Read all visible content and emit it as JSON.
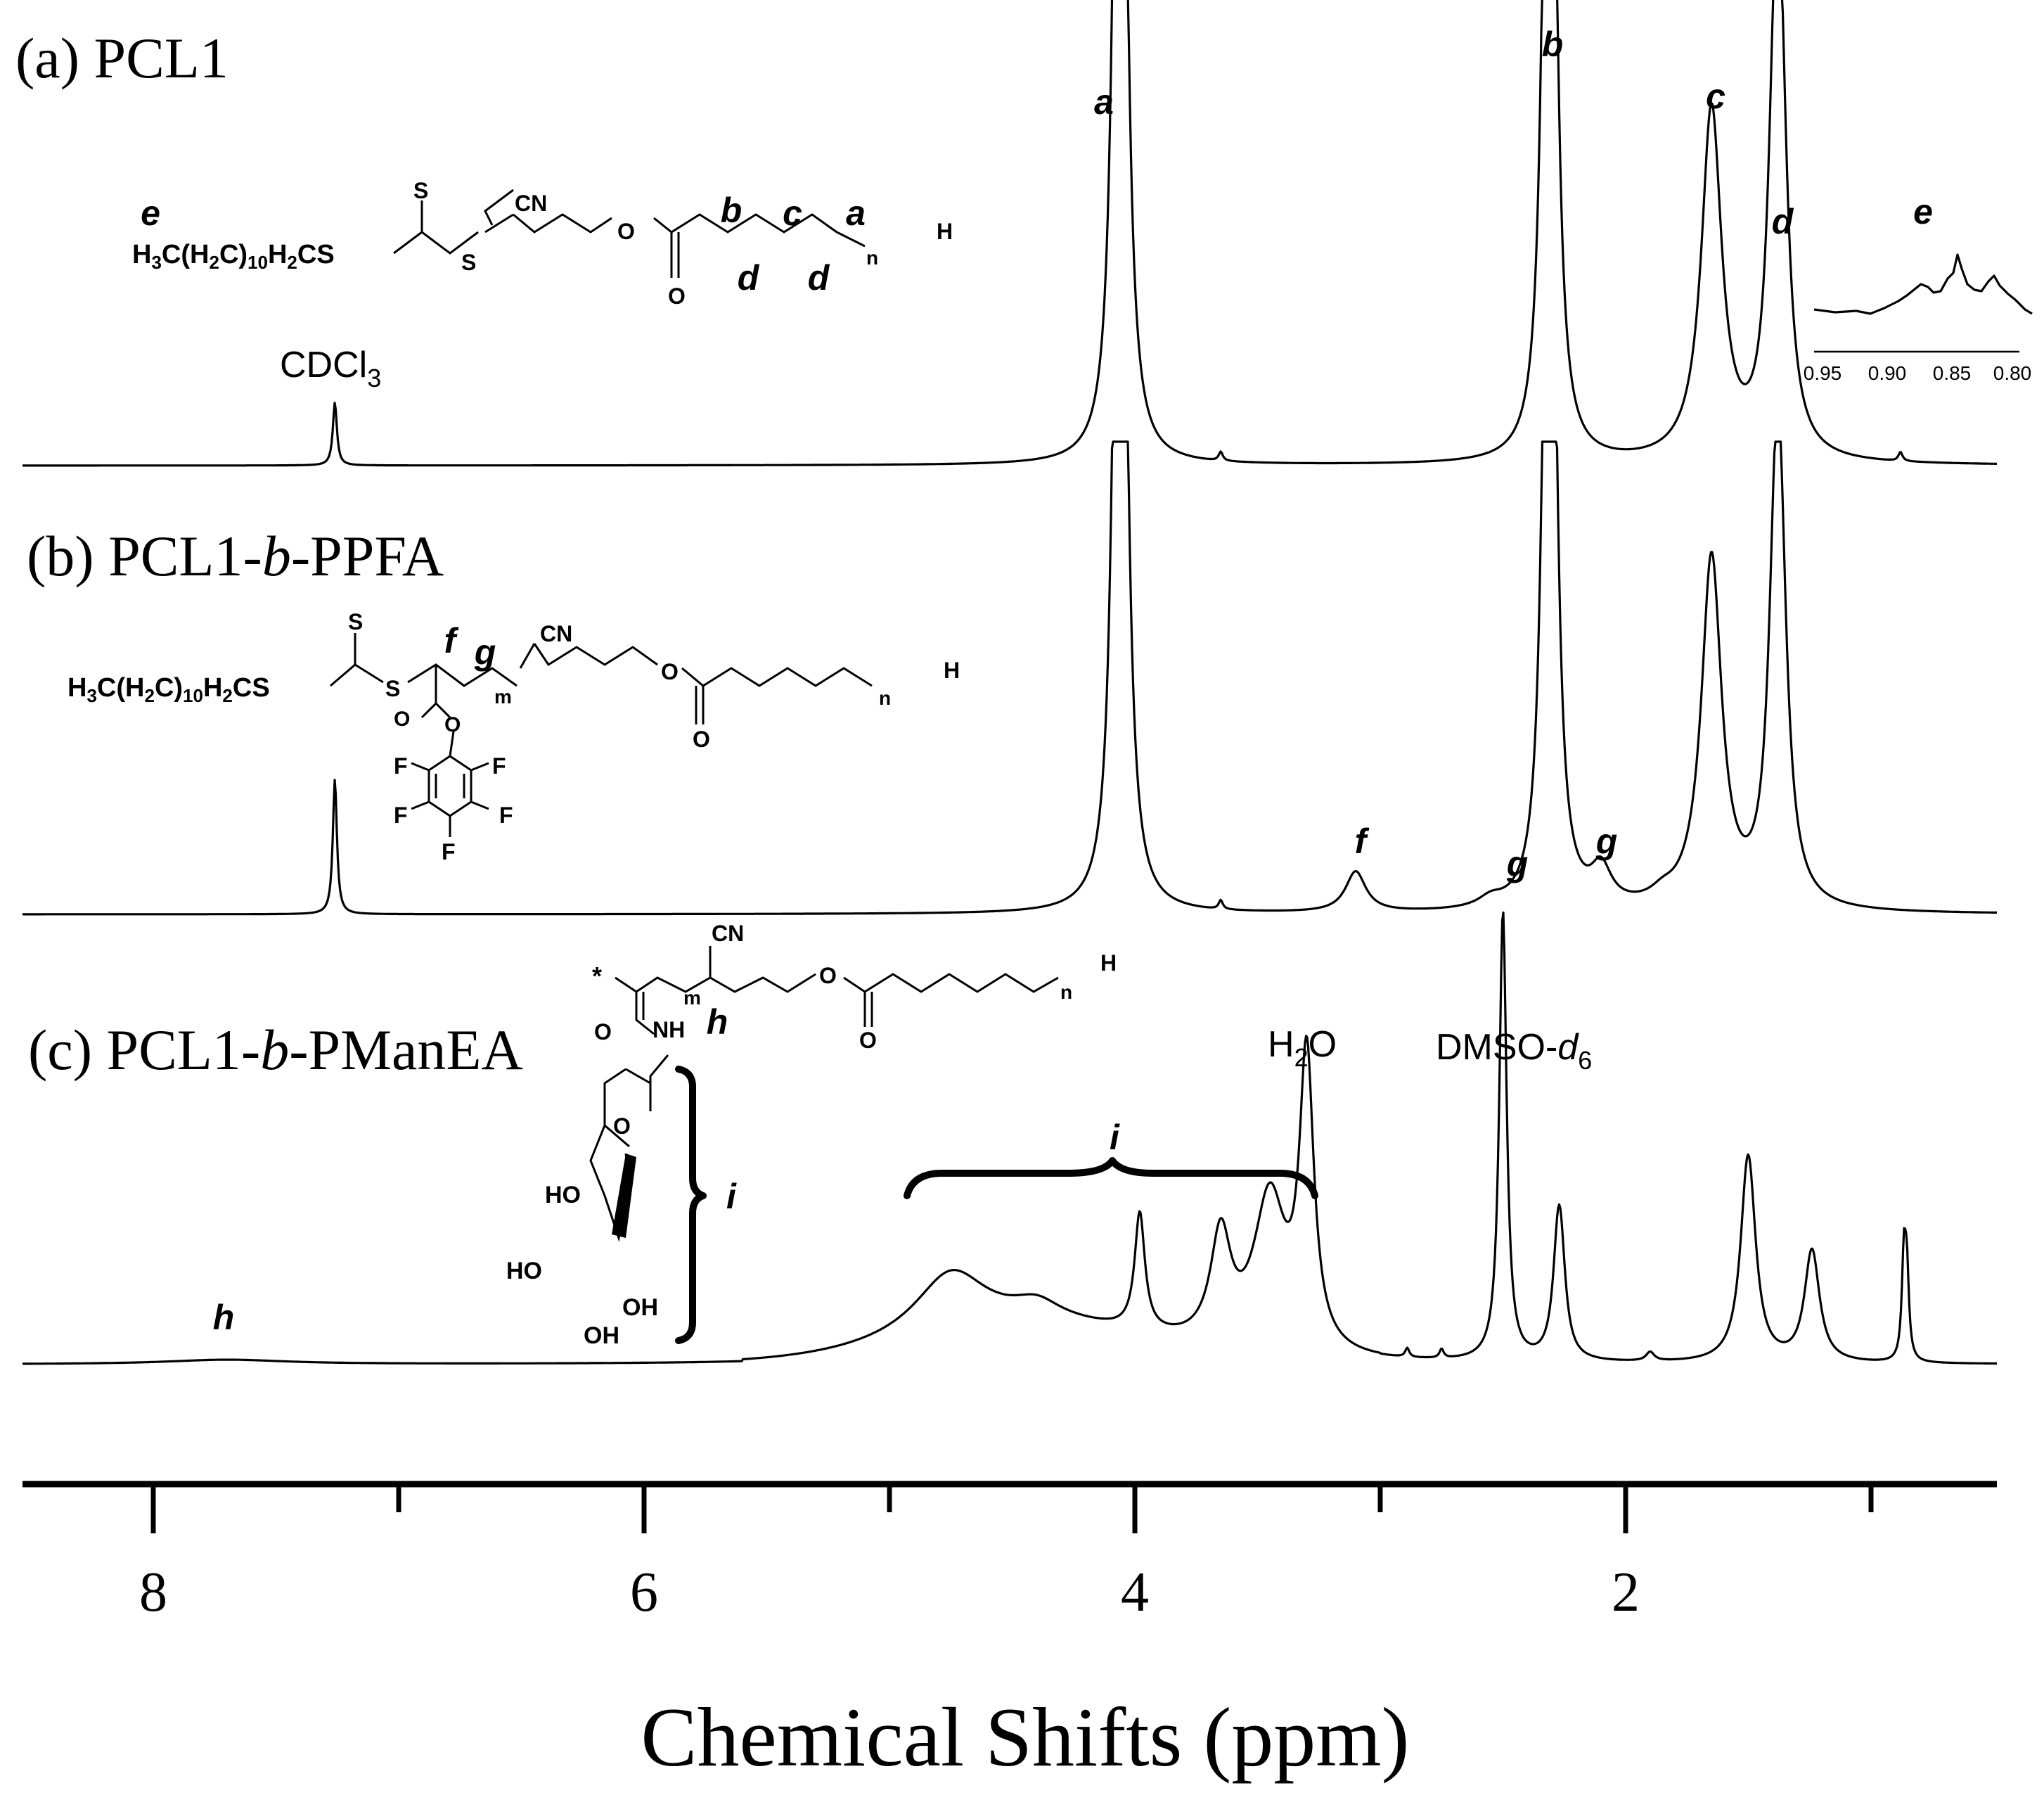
{
  "chart_data": {
    "type": "line",
    "xlabel": "Chemical Shifts (ppm)",
    "x_reversed": true,
    "xlim": [
      8.5,
      0.5
    ],
    "x_ticks": [
      "8",
      "6",
      "4",
      "2"
    ],
    "panels": [
      {
        "label": "(a) PCL1",
        "peaks": [
          {
            "ppm": 7.26,
            "height": 0.14,
            "width": 0.01
          },
          {
            "ppm": 4.06,
            "height": 1.0,
            "width": 0.025,
            "split": 3
          },
          {
            "ppm": 3.65,
            "height": 0.02,
            "width": 0.01
          },
          {
            "ppm": 2.31,
            "height": 0.95,
            "width": 0.025,
            "split": 3
          },
          {
            "ppm": 1.65,
            "height": 0.78,
            "width": 0.05
          },
          {
            "ppm": 1.38,
            "height": 0.5,
            "width": 0.035,
            "split": 3
          },
          {
            "ppm": 0.88,
            "height": 0.02,
            "width": 0.01
          }
        ],
        "annotations": [
          {
            "text": "a",
            "ppm": 4.06
          },
          {
            "text": "b",
            "ppm": 2.31
          },
          {
            "text": "c",
            "ppm": 1.65
          },
          {
            "text": "d",
            "ppm": 1.38
          },
          {
            "text": "CDCl3",
            "ppm": 7.26
          }
        ],
        "inset": {
          "label": "e",
          "ticks": [
            "0.95",
            "0.90",
            "0.85",
            "0.80"
          ]
        }
      },
      {
        "label": "(b) PCL1-b-PPFA",
        "peaks": [
          {
            "ppm": 7.26,
            "height": 0.3,
            "width": 0.01
          },
          {
            "ppm": 4.06,
            "height": 1.0,
            "width": 0.025,
            "split": 3
          },
          {
            "ppm": 3.65,
            "height": 0.02,
            "width": 0.01
          },
          {
            "ppm": 3.1,
            "height": 0.09,
            "width": 0.05
          },
          {
            "ppm": 2.55,
            "height": 0.02,
            "width": 0.06
          },
          {
            "ppm": 2.31,
            "height": 0.9,
            "width": 0.025,
            "split": 3
          },
          {
            "ppm": 2.1,
            "height": 0.08,
            "width": 0.05
          },
          {
            "ppm": 1.85,
            "height": 0.02,
            "width": 0.06
          },
          {
            "ppm": 1.65,
            "height": 0.78,
            "width": 0.05
          },
          {
            "ppm": 1.38,
            "height": 0.45,
            "width": 0.035,
            "split": 3
          }
        ],
        "annotations": [
          {
            "text": "f",
            "ppm": 3.1
          },
          {
            "text": "g",
            "ppm": 2.55
          },
          {
            "text": "g",
            "ppm": 2.1
          }
        ]
      },
      {
        "label": "(c) PCL1-b-PManEA",
        "peaks": [
          {
            "ppm": 7.7,
            "height": 0.01,
            "width": 0.3
          },
          {
            "ppm": 4.75,
            "height": 0.14,
            "width": 0.18
          },
          {
            "ppm": 4.4,
            "height": 0.04,
            "width": 0.12
          },
          {
            "ppm": 3.98,
            "height": 0.26,
            "width": 0.025
          },
          {
            "ppm": 3.65,
            "height": 0.24,
            "width": 0.05
          },
          {
            "ppm": 3.45,
            "height": 0.34,
            "width": 0.08
          },
          {
            "ppm": 3.3,
            "height": 0.64,
            "width": 0.035
          },
          {
            "ppm": 2.89,
            "height": 0.02,
            "width": 0.01
          },
          {
            "ppm": 2.75,
            "height": 0.02,
            "width": 0.01
          },
          {
            "ppm": 2.5,
            "height": 1.0,
            "width": 0.018
          },
          {
            "ppm": 2.27,
            "height": 0.2,
            "width": 0.025,
            "split": 2
          },
          {
            "ppm": 1.9,
            "height": 0.02,
            "width": 0.02
          },
          {
            "ppm": 1.5,
            "height": 0.26,
            "width": 0.035,
            "split": 2
          },
          {
            "ppm": 1.24,
            "height": 0.14,
            "width": 0.035,
            "split": 2
          },
          {
            "ppm": 0.86,
            "height": 0.22,
            "width": 0.01,
            "split": 2
          }
        ],
        "annotations": [
          {
            "text": "h",
            "ppm": 7.7
          },
          {
            "text": "i",
            "ppm": 4.1
          },
          {
            "text": "H2O",
            "ppm": 3.3
          },
          {
            "text": "DMSO-d6",
            "ppm": 2.5
          }
        ]
      }
    ]
  },
  "structures": {
    "a": {
      "end_group": "e",
      "formula": "H3C(H2C)10H2CS",
      "labels": [
        "S",
        "CN",
        "S",
        "O",
        "O",
        "n",
        "H"
      ],
      "carbon_labels": [
        "b",
        "c",
        "a",
        "d",
        "d"
      ]
    },
    "b": {
      "formula": "H3C(H2C)10H2CS",
      "labels": [
        "S",
        "S",
        "CN",
        "O",
        "O",
        "O",
        "O",
        "n",
        "H",
        "m"
      ],
      "carbon_labels": [
        "f",
        "g"
      ],
      "fluorines": [
        "F",
        "F",
        "F",
        "F",
        "F"
      ]
    },
    "c": {
      "labels": [
        "*",
        "CN",
        "O",
        "O",
        "O",
        "NH",
        "m",
        "n",
        "H",
        "O"
      ],
      "carbon_labels": [
        "h",
        "i"
      ],
      "hydroxyls": [
        "HO",
        "HO",
        "OH",
        "OH"
      ]
    }
  }
}
